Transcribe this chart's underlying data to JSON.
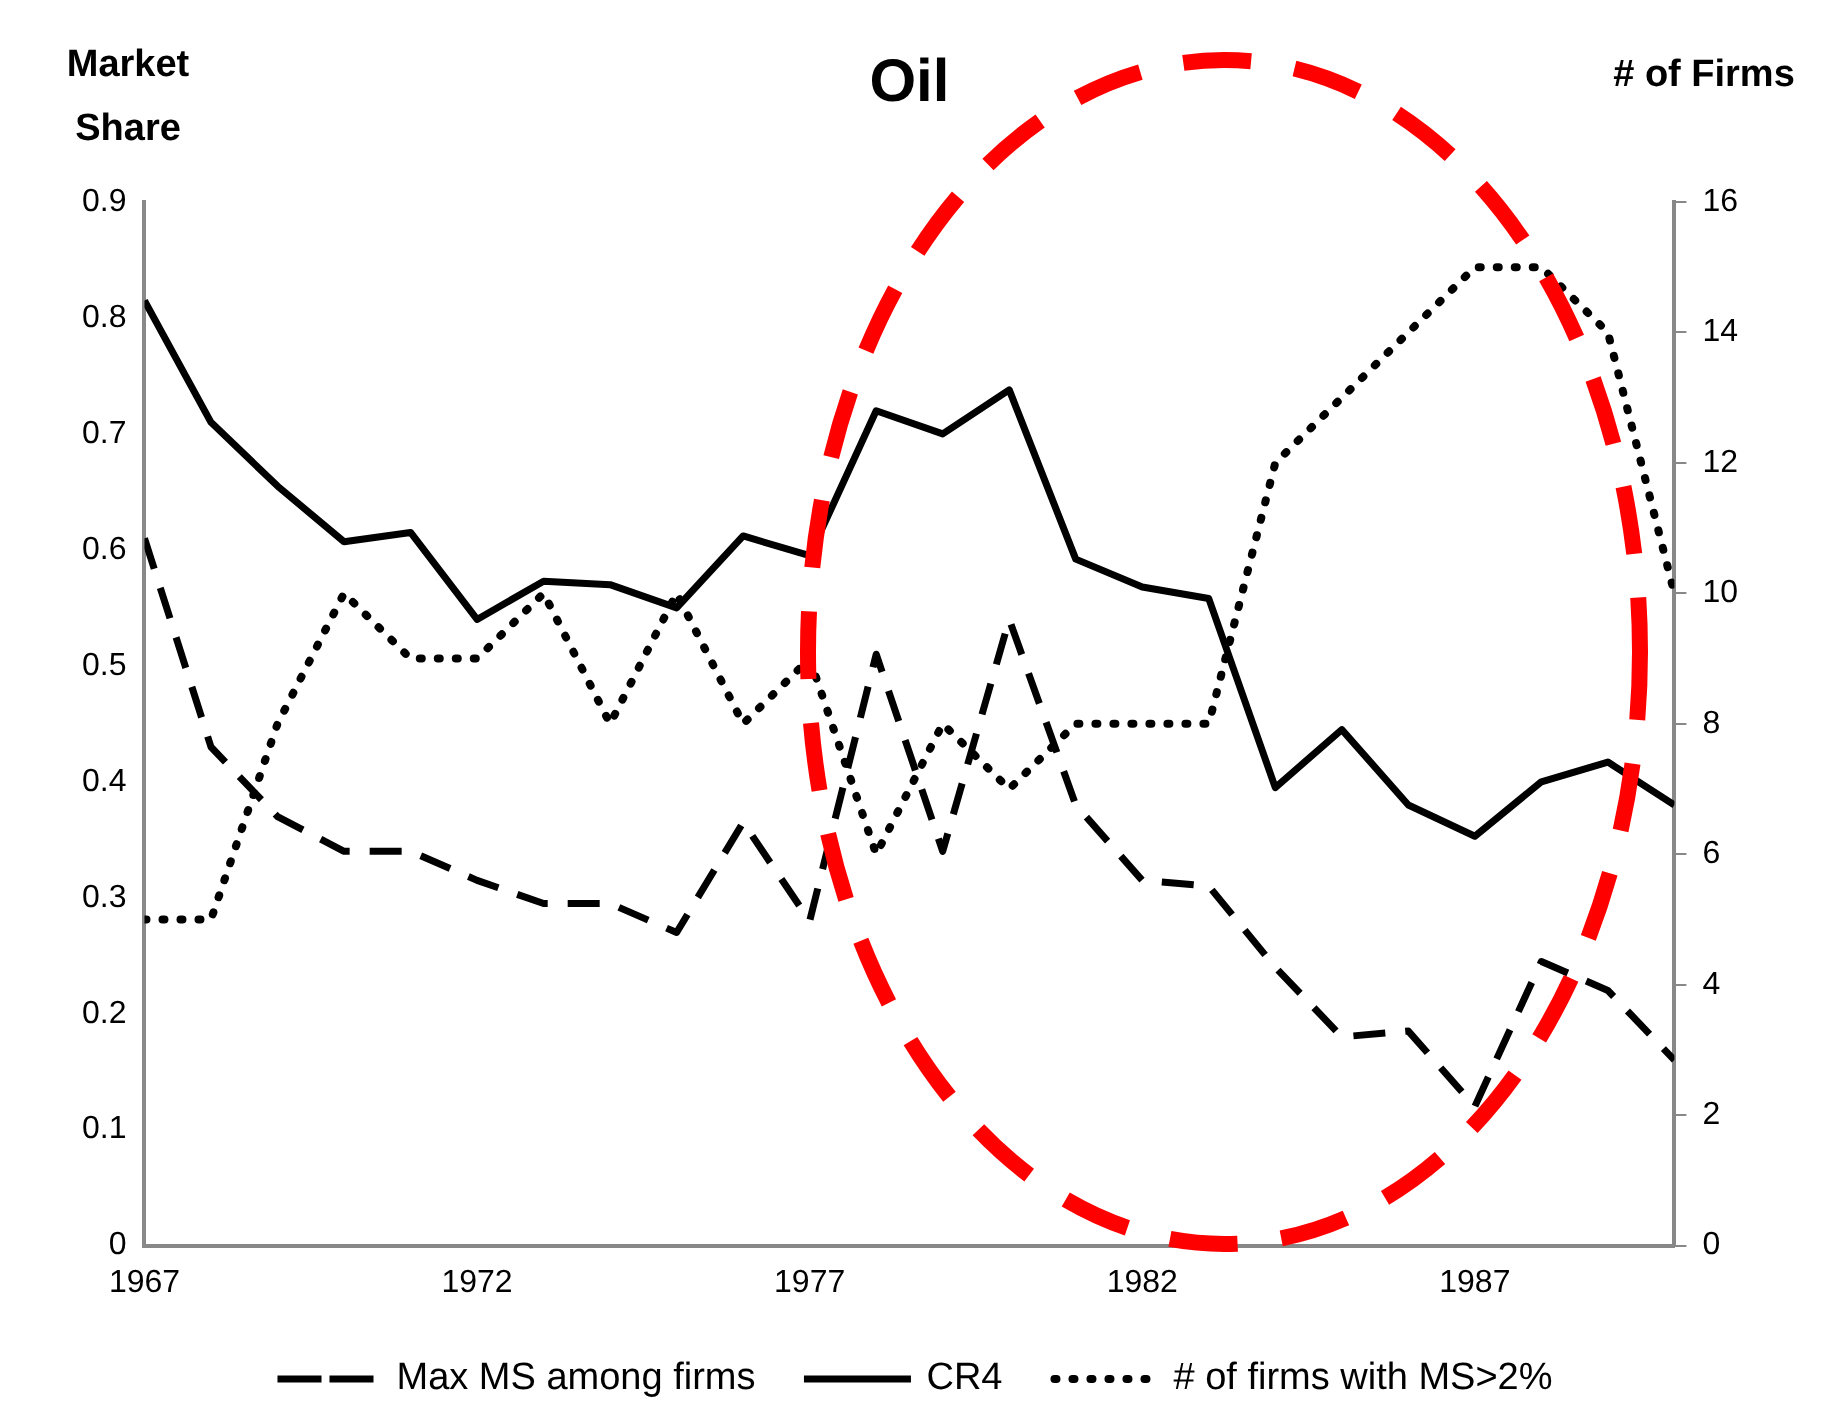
{
  "chart_data": {
    "type": "line",
    "title": "Oil",
    "ylabel": "Market Share",
    "y2label": "# of Firms",
    "x": [
      1967,
      1968,
      1969,
      1970,
      1971,
      1972,
      1973,
      1974,
      1975,
      1976,
      1977,
      1978,
      1979,
      1980,
      1981,
      1982,
      1983,
      1984,
      1985,
      1986,
      1987,
      1988,
      1989,
      1990
    ],
    "xlim": [
      1967,
      1990
    ],
    "xticks": [
      1967,
      1972,
      1977,
      1982,
      1987
    ],
    "ylim": [
      0,
      0.9
    ],
    "yticks": [
      0,
      0.1,
      0.2,
      0.3,
      0.4,
      0.5,
      0.6,
      0.7,
      0.8,
      0.9
    ],
    "y2lim": [
      0,
      16
    ],
    "y2ticks": [
      0,
      2,
      4,
      6,
      8,
      10,
      12,
      14,
      16
    ],
    "grid": false,
    "legend": "bottom",
    "marker": "none",
    "series": [
      {
        "name": "Max MS among firms",
        "color": "#000000",
        "line_style": "dashed",
        "values": [
          0.61,
          0.43,
          0.37,
          0.34,
          0.34,
          0.315,
          0.295,
          0.295,
          0.27,
          0.365,
          0.28,
          0.51,
          0.34,
          0.54,
          0.38,
          0.315,
          0.31,
          0.24,
          0.18,
          0.185,
          0.12,
          0.245,
          0.22,
          0.16
        ]
      },
      {
        "name": "CR4",
        "color": "#000000",
        "line_style": "solid",
        "values": [
          0.815,
          0.71,
          0.655,
          0.607,
          0.615,
          0.54,
          0.573,
          0.57,
          0.55,
          0.612,
          0.595,
          0.72,
          0.7,
          0.738,
          0.592,
          0.568,
          0.558,
          0.395,
          0.445,
          0.38,
          0.353,
          0.4,
          0.417,
          0.38
        ]
      },
      {
        "name": "# of firms with MS>2%",
        "color": "#000000",
        "line_style": "dotted",
        "axis": "y2",
        "values": [
          5,
          5,
          8,
          10,
          9,
          9,
          10,
          8,
          10,
          8,
          9,
          6,
          8,
          7,
          8,
          8,
          8,
          12,
          13,
          14,
          15,
          15,
          14,
          10
        ]
      }
    ]
  }
}
